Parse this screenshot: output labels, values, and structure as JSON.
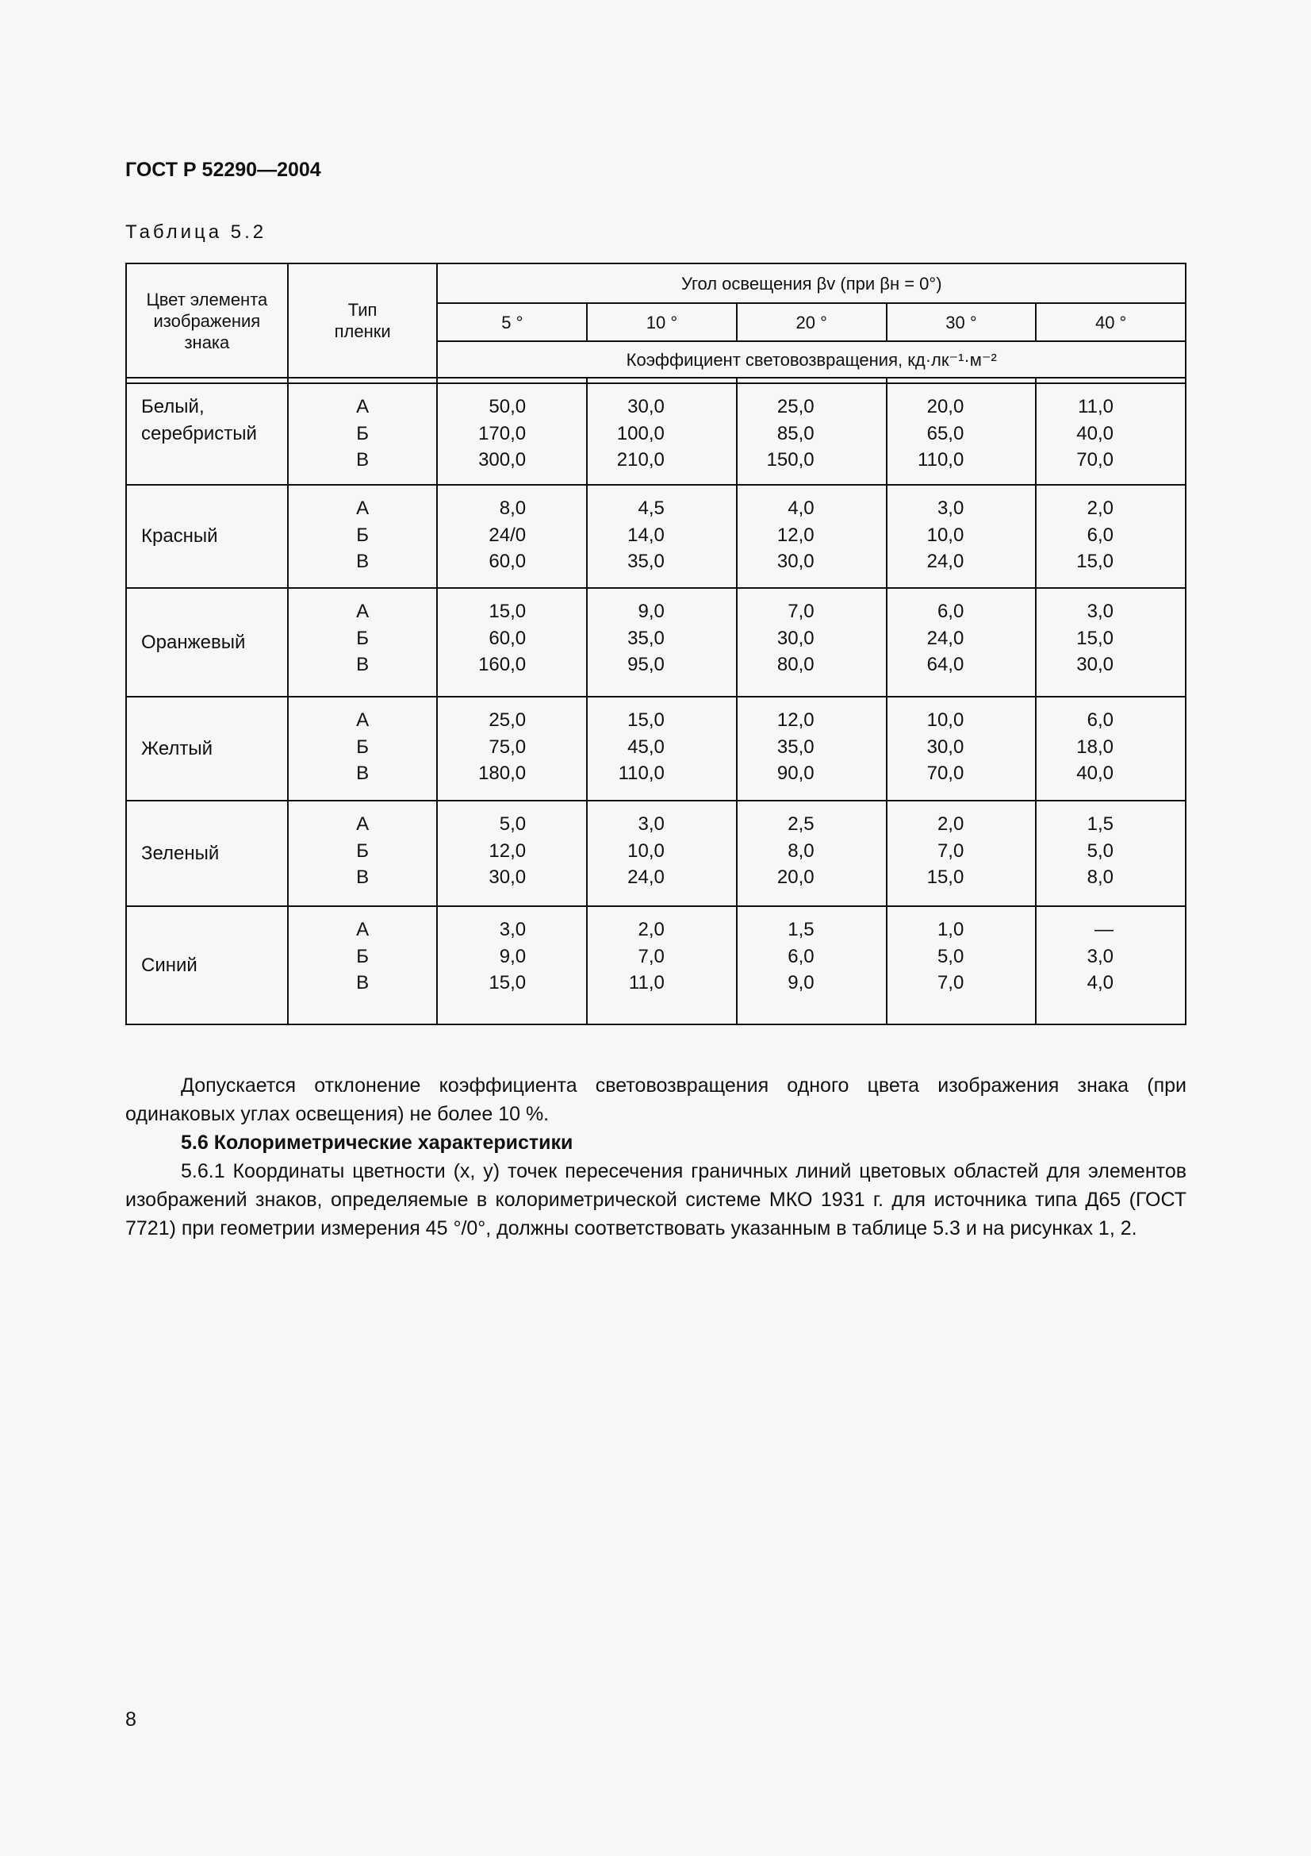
{
  "header": {
    "doc_title": "ГОСТ Р 52290—2004"
  },
  "table": {
    "caption": "Таблица 5.2",
    "col_color": "Цвет элемента изображения знака",
    "col_type": "Тип пленки",
    "angle_header": "Угол освещения βv (при βн = 0°)",
    "angle_header_parts": {
      "pre": "Угол освещения β",
      "sub1": "v",
      "mid": " (при β",
      "sub2": "н",
      "post": " = 0°)"
    },
    "angles": [
      "5 °",
      "10 °",
      "20 °",
      "30 °",
      "40 °"
    ],
    "unit_header": "Коэффициент световозвращения, кд·лк⁻¹·м⁻²",
    "types": [
      "А",
      "Б",
      "В"
    ],
    "rows": [
      {
        "color": "Белый, серебристый",
        "values": [
          [
            "50,0",
            "170,0",
            "300,0"
          ],
          [
            "30,0",
            "100,0",
            "210,0"
          ],
          [
            "25,0",
            "85,0",
            "150,0"
          ],
          [
            "20,0",
            "65,0",
            "110,0"
          ],
          [
            "11,0",
            "40,0",
            "70,0"
          ]
        ]
      },
      {
        "color": "Красный",
        "values": [
          [
            "8,0",
            "24/0",
            "60,0"
          ],
          [
            "4,5",
            "14,0",
            "35,0"
          ],
          [
            "4,0",
            "12,0",
            "30,0"
          ],
          [
            "3,0",
            "10,0",
            "24,0"
          ],
          [
            "2,0",
            "6,0",
            "15,0"
          ]
        ]
      },
      {
        "color": "Оранжевый",
        "values": [
          [
            "15,0",
            "60,0",
            "160,0"
          ],
          [
            "9,0",
            "35,0",
            "95,0"
          ],
          [
            "7,0",
            "30,0",
            "80,0"
          ],
          [
            "6,0",
            "24,0",
            "64,0"
          ],
          [
            "3,0",
            "15,0",
            "30,0"
          ]
        ]
      },
      {
        "color": "Желтый",
        "values": [
          [
            "25,0",
            "75,0",
            "180,0"
          ],
          [
            "15,0",
            "45,0",
            "110,0"
          ],
          [
            "12,0",
            "35,0",
            "90,0"
          ],
          [
            "10,0",
            "30,0",
            "70,0"
          ],
          [
            "6,0",
            "18,0",
            "40,0"
          ]
        ]
      },
      {
        "color": "Зеленый",
        "values": [
          [
            "5,0",
            "12,0",
            "30,0"
          ],
          [
            "3,0",
            "10,0",
            "24,0"
          ],
          [
            "2,5",
            "8,0",
            "20,0"
          ],
          [
            "2,0",
            "7,0",
            "15,0"
          ],
          [
            "1,5",
            "5,0",
            "8,0"
          ]
        ]
      },
      {
        "color": "Синий",
        "values": [
          [
            "3,0",
            "9,0",
            "15,0"
          ],
          [
            "2,0",
            "7,0",
            "11,0"
          ],
          [
            "1,5",
            "6,0",
            "9,0"
          ],
          [
            "1,0",
            "5,0",
            "7,0"
          ],
          [
            "—",
            "3,0",
            "4,0"
          ]
        ]
      }
    ]
  },
  "body": {
    "para1": "Допускается отклонение коэффициента световозвращения одного цвета изображения знака (при одинаковых углах освещения) не более 10 %.",
    "section_heading": "5.6 Колориметрические характеристики",
    "para2": "5.6.1 Координаты цветности (x, y) точек пересечения граничных линий цветовых областей для элементов изображений знаков, определяемые в колориметрической системе МКО 1931 г. для источника типа Д65 (ГОСТ 7721) при геометрии измерения 45 °/0°, должны соответствовать указанным в таблице 5.3 и на рисунках 1, 2."
  },
  "footer": {
    "page_number": "8"
  }
}
